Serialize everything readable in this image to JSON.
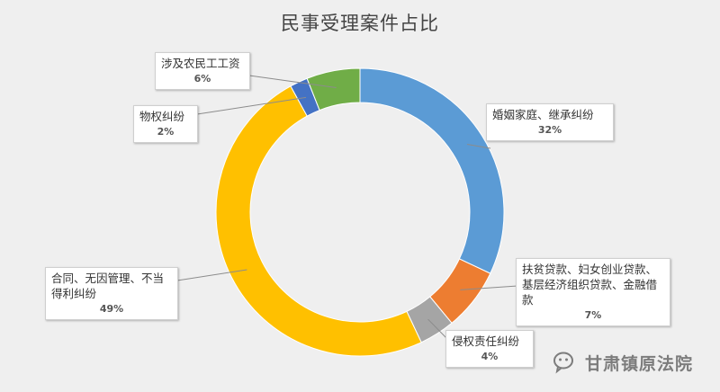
{
  "chart_data": {
    "type": "pie",
    "variant": "donut",
    "title": "民事受理案件占比",
    "slices": [
      {
        "label": "婚姻家庭、继承纠纷",
        "value": 32,
        "pct_label": "32%",
        "color": "#5b9bd5"
      },
      {
        "label": "扶贫贷款、妇女创业贷款、基层经济组织贷款、金融借款",
        "value": 7,
        "pct_label": "7%",
        "color": "#ed7d31"
      },
      {
        "label": "侵权责任纠纷",
        "value": 4,
        "pct_label": "4%",
        "color": "#a5a5a5"
      },
      {
        "label": "合同、无因管理、不当得利纠纷",
        "value": 49,
        "pct_label": "49%",
        "color": "#ffc000"
      },
      {
        "label": "物权纠纷",
        "value": 2,
        "pct_label": "2%",
        "color": "#4472c4"
      },
      {
        "label": "涉及农民工工资",
        "value": 6,
        "pct_label": "6%",
        "color": "#70ad47"
      }
    ]
  },
  "watermark": {
    "text": "甘肃镇原法院",
    "icon": "wechat-icon"
  }
}
